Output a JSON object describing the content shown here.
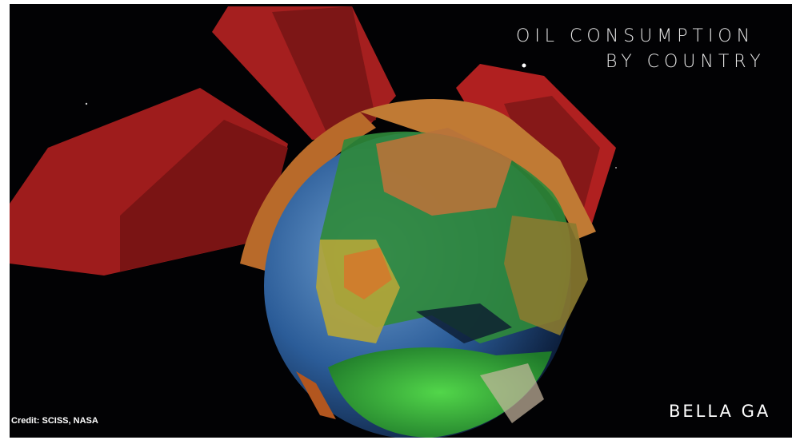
{
  "header": {
    "title": "OIL CONSUMPTION",
    "subtitle": "BY COUNTRY"
  },
  "footer": {
    "credit": "Credit: SCISS, NASA",
    "watermark": "BELLA GA"
  }
}
